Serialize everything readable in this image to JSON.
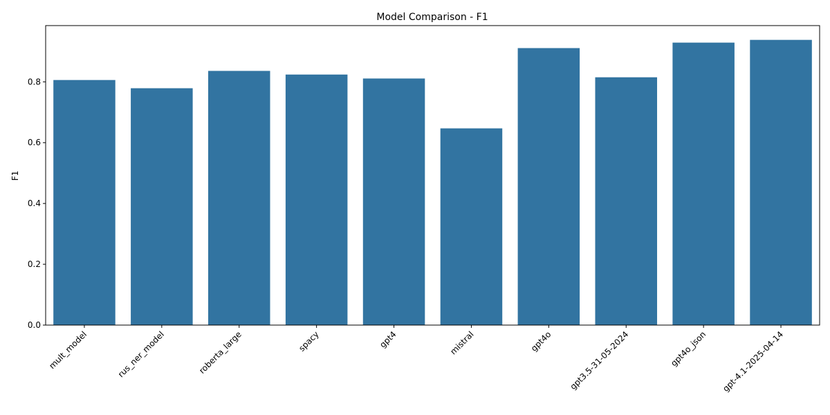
{
  "chart_data": {
    "type": "bar",
    "title": "Model Comparison - F1",
    "xlabel": "",
    "ylabel": "F1",
    "categories": [
      "mult_model",
      "rus_ner_model",
      "roberta_large",
      "spacy",
      "gpt4",
      "mistral",
      "gpt4o",
      "gpt3.5-31-05-2024",
      "gpt4o_json",
      "gpt-4.1-2025-04-14"
    ],
    "values": [
      0.806,
      0.779,
      0.836,
      0.824,
      0.811,
      0.647,
      0.911,
      0.815,
      0.929,
      0.938
    ],
    "ylim": [
      0,
      0.985
    ],
    "yticks": [
      0.0,
      0.2,
      0.4,
      0.6,
      0.8
    ],
    "ytick_labels": [
      "0.0",
      "0.2",
      "0.4",
      "0.6",
      "0.8"
    ],
    "bar_color": "#3274a1",
    "grid": false,
    "legend": false
  }
}
